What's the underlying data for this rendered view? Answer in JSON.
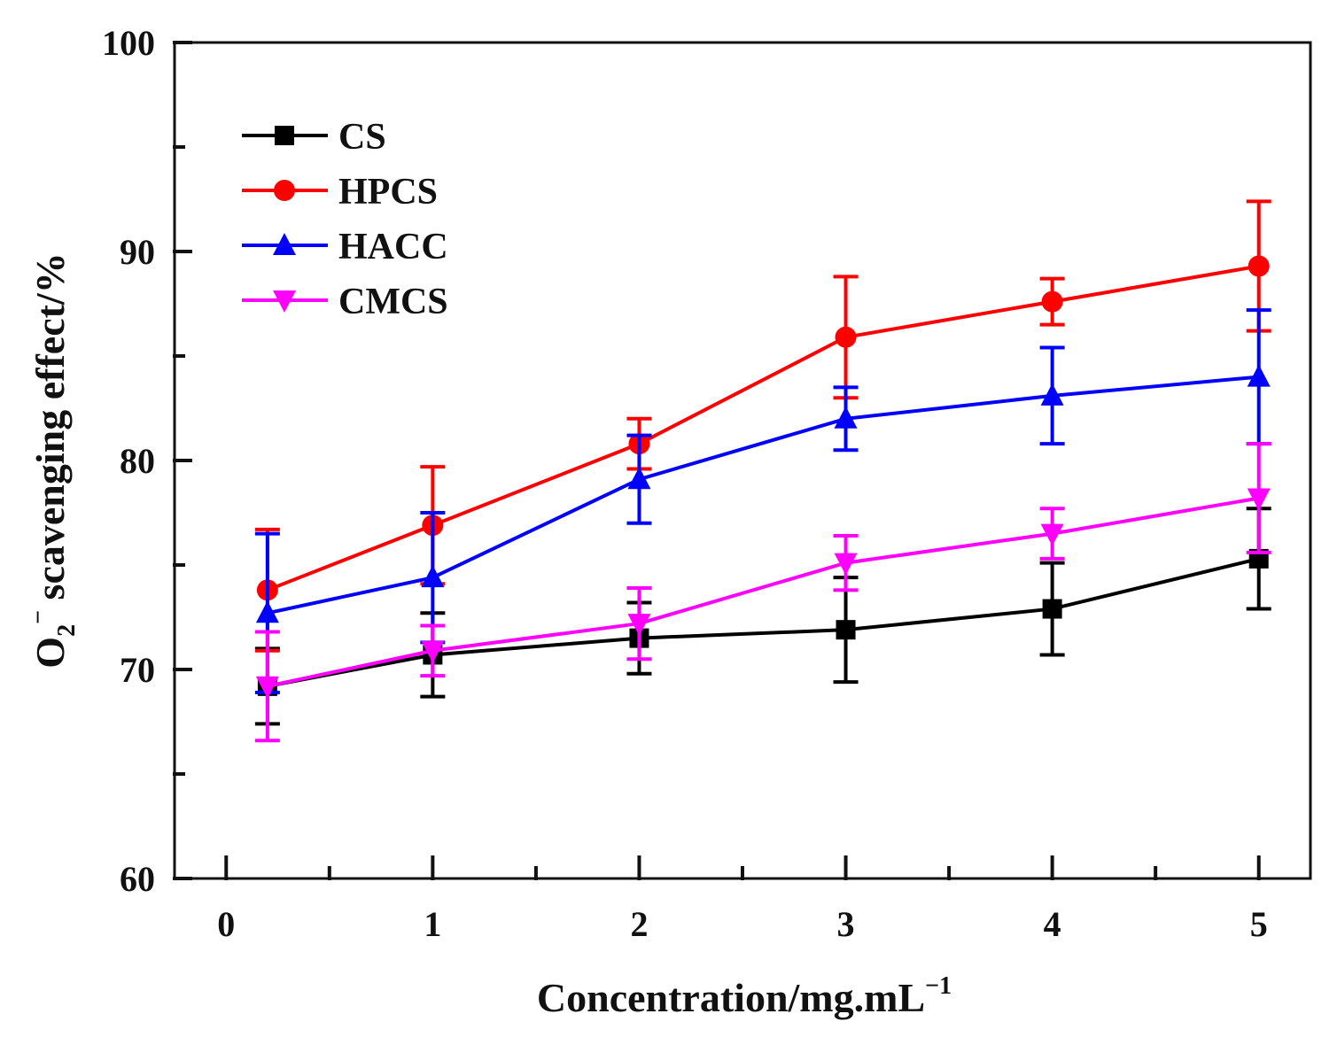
{
  "chart_data": {
    "type": "line",
    "title": "",
    "xlabel": "Concentration/mg.mL",
    "xlabel_sup": "−1",
    "ylabel_prefix": "O",
    "ylabel_sub": "2",
    "ylabel_sup": "−",
    "ylabel_rest": " scavenging effect/%",
    "xlim": [
      -0.25,
      5.25
    ],
    "ylim": [
      60,
      100
    ],
    "xticks": [
      0,
      1,
      2,
      3,
      4,
      5
    ],
    "xtick_labels": [
      "0",
      "1",
      "2",
      "3",
      "4",
      "5"
    ],
    "yticks": [
      60,
      70,
      80,
      90,
      100
    ],
    "ytick_labels": [
      "60",
      "70",
      "80",
      "90",
      "100"
    ],
    "x": [
      0.2,
      1,
      2,
      3,
      4,
      5
    ],
    "grid": false,
    "legend_position": "top-left",
    "series": [
      {
        "name": "CS",
        "color": "#000000",
        "marker": "square",
        "values": [
          69.2,
          70.7,
          71.5,
          71.9,
          72.9,
          75.3
        ],
        "errors": [
          1.8,
          2.0,
          1.7,
          2.5,
          2.2,
          2.4
        ]
      },
      {
        "name": "HPCS",
        "color": "#ff0000",
        "marker": "circle",
        "values": [
          73.8,
          76.9,
          80.8,
          85.9,
          87.6,
          89.3
        ],
        "errors": [
          2.9,
          2.8,
          1.2,
          2.9,
          1.1,
          3.1
        ]
      },
      {
        "name": "HACC",
        "color": "#0000ff",
        "marker": "triangle-up",
        "values": [
          72.7,
          74.4,
          79.1,
          82.0,
          83.1,
          84.0
        ],
        "errors": [
          3.8,
          3.1,
          2.1,
          1.5,
          2.3,
          3.2
        ]
      },
      {
        "name": "CMCS",
        "color": "#ff00ff",
        "marker": "triangle-down",
        "values": [
          69.2,
          70.9,
          72.2,
          75.1,
          76.5,
          78.2
        ],
        "errors": [
          2.6,
          1.2,
          1.7,
          1.3,
          1.2,
          2.6
        ]
      }
    ]
  }
}
